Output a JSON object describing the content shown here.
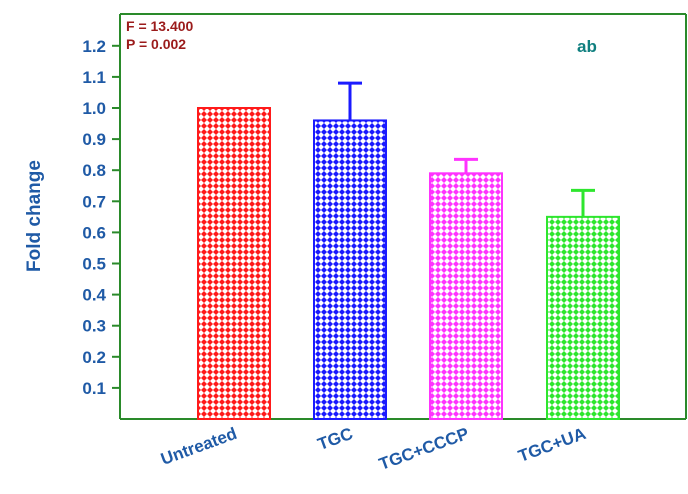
{
  "chart_data": {
    "type": "bar",
    "categories": [
      "Untreated",
      "TGC",
      "TGC+CCCP",
      "TGC+UA"
    ],
    "values": [
      1.0,
      0.96,
      0.79,
      0.65
    ],
    "errors": [
      0.0,
      0.12,
      0.045,
      0.085
    ],
    "colors": [
      "#ff1a1a",
      "#1a1aff",
      "#ff33ff",
      "#2ee62e"
    ],
    "ylabel": "Fold change",
    "xlabel": "",
    "ylim": [
      0,
      1.3
    ],
    "yticks": [
      "0.1",
      "0.2",
      "0.3",
      "0.4",
      "0.5",
      "0.6",
      "0.7",
      "0.8",
      "0.9",
      "1.0",
      "1.1",
      "1.2"
    ],
    "annotations": {
      "f_stat": "F = 13.400",
      "p_value": "P = 0.002",
      "significance": "ab"
    },
    "grid": false,
    "axis_color": "#2a8a2a"
  }
}
